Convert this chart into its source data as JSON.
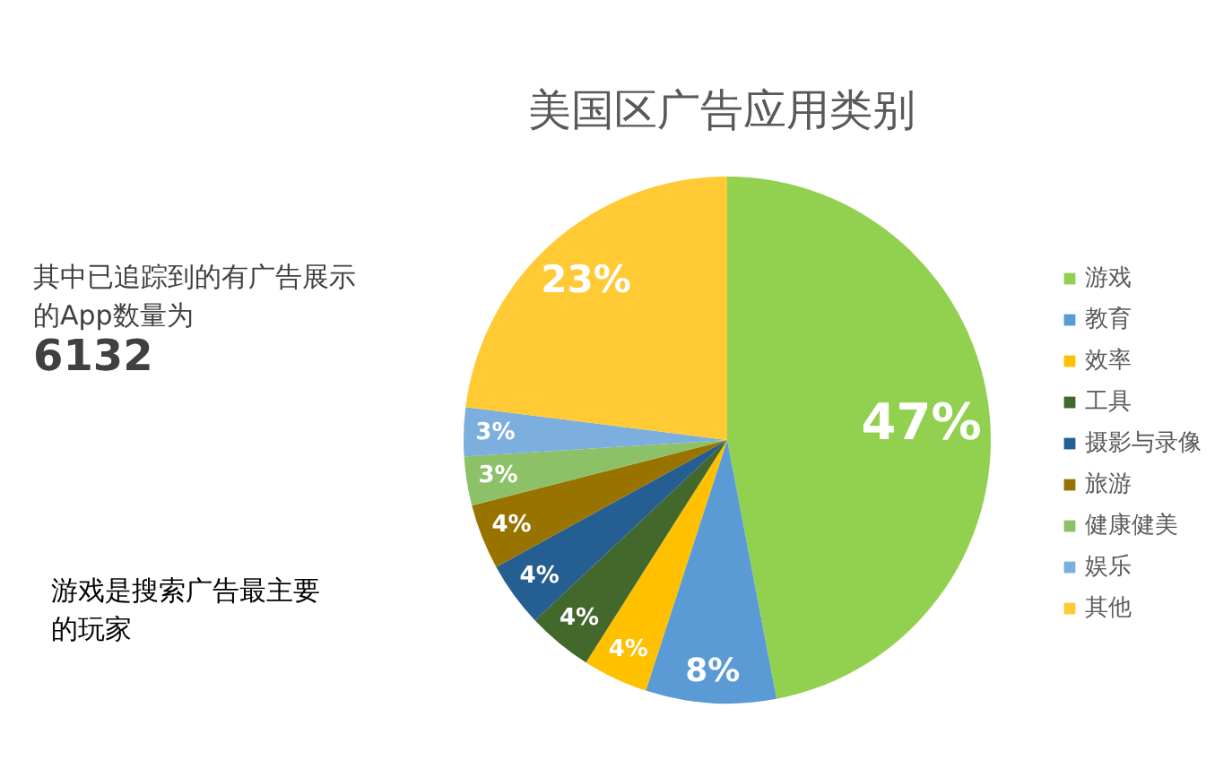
{
  "chart_data": {
    "type": "pie",
    "title": "美国区广告应用类别",
    "categories": [
      "游戏",
      "教育",
      "效率",
      "工具",
      "摄影与录像",
      "旅游",
      "健康健美",
      "娱乐",
      "其他"
    ],
    "values": [
      47,
      8,
      4,
      4,
      4,
      4,
      3,
      3,
      23
    ],
    "value_labels": [
      "47%",
      "8%",
      "4%",
      "4%",
      "4%",
      "4%",
      "3%",
      "3%",
      "23%"
    ],
    "colors": [
      "#92d050",
      "#5b9bd5",
      "#ffc000",
      "#43682b",
      "#255e91",
      "#997300",
      "#8cc168",
      "#7cafdd",
      "#ffca33"
    ],
    "legend": "right",
    "annotations": [
      "其中已追踪到的有广告展示的App数量为",
      "6132",
      "游戏是搜索广告最主要的玩家"
    ]
  }
}
